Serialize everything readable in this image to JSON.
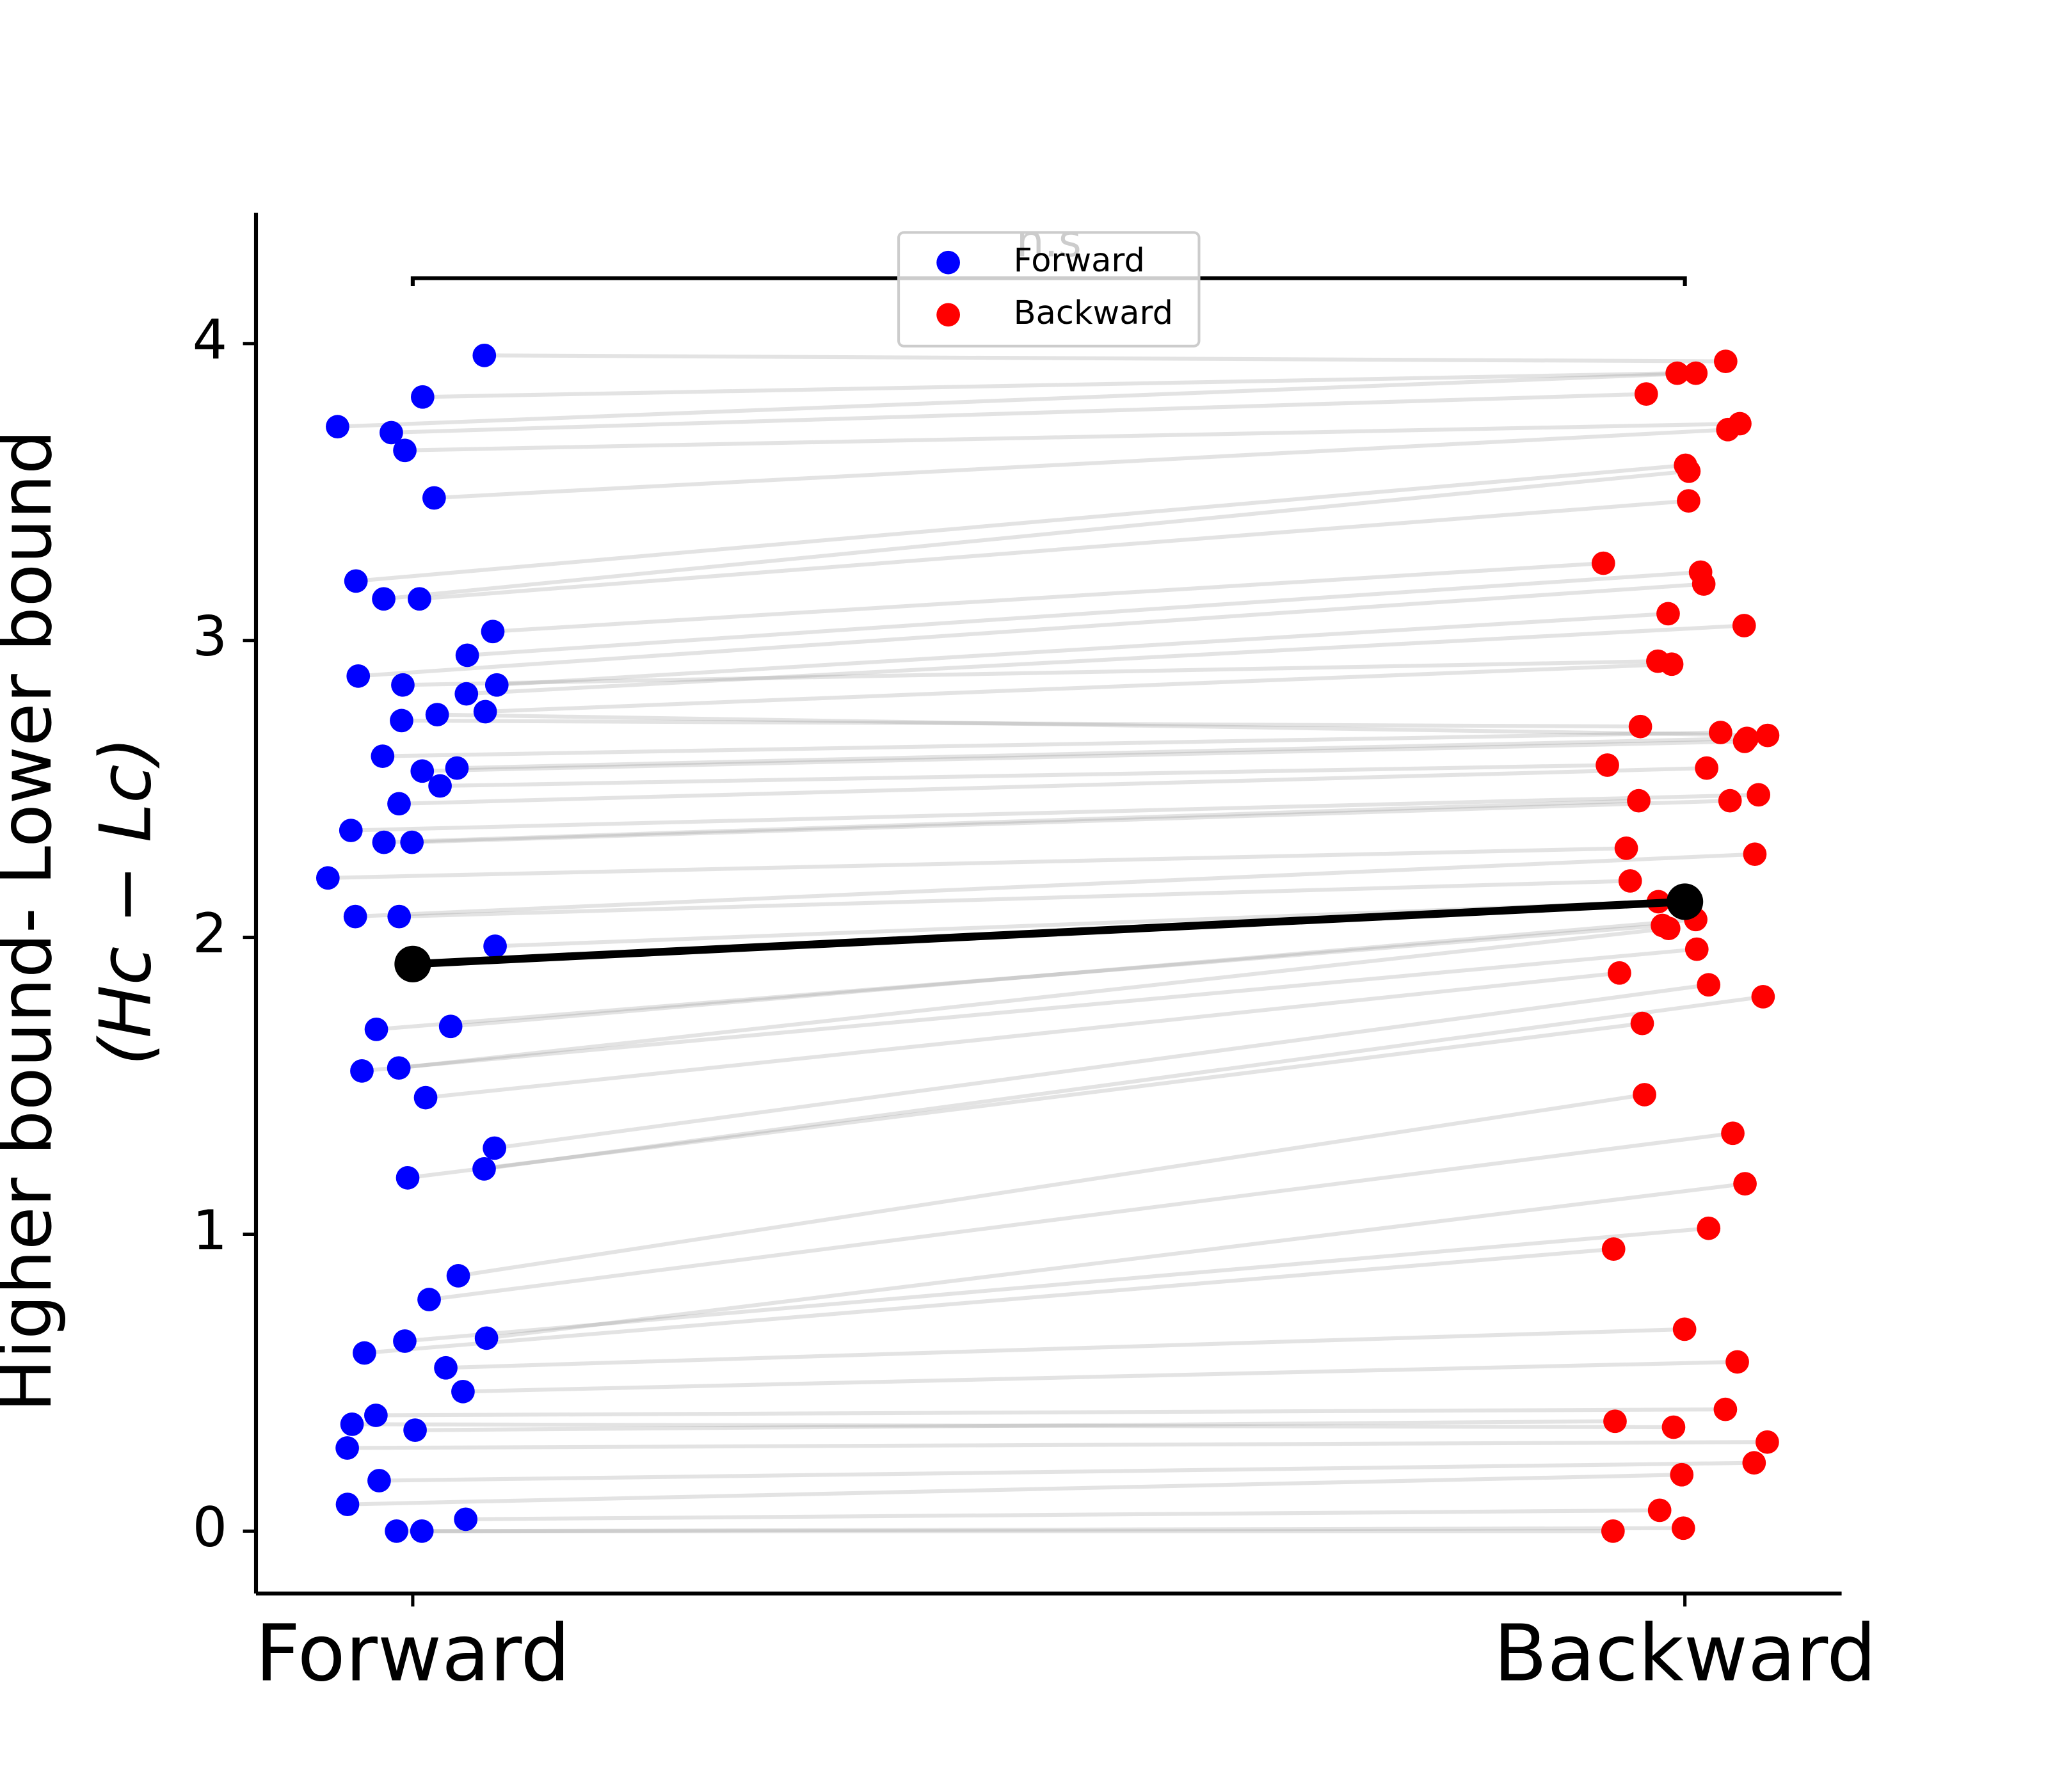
{
  "chart_data": {
    "type": "paired-strip",
    "categories": [
      "Forward",
      "Backward"
    ],
    "ylabel": [
      "Higher bound- Lower bound",
      "(Hc − Lc)"
    ],
    "annotation": {
      "text": "n.s",
      "y": 4.22
    },
    "legend": "upper center",
    "series": [
      {
        "name": "Forward",
        "color": "#0000ff",
        "values": [
          3.96,
          3.72,
          3.82,
          3.7,
          3.64,
          3.48,
          3.2,
          3.14,
          3.14,
          3.03,
          2.95,
          2.88,
          2.85,
          2.82,
          2.85,
          2.76,
          2.73,
          2.75,
          2.61,
          2.57,
          2.56,
          2.51,
          2.45,
          2.36,
          2.32,
          2.32,
          2.2,
          2.07,
          2.07,
          1.97,
          1.7,
          1.69,
          1.56,
          1.55,
          1.46,
          1.29,
          1.22,
          1.19,
          0.86,
          0.78,
          0.65,
          0.64,
          0.6,
          0.55,
          0.47,
          0.39,
          0.34,
          0.36,
          0.28,
          0.17,
          0.09,
          0.04,
          0.0,
          0.0
        ]
      },
      {
        "name": "Backward",
        "color": "#ff0000",
        "values": [
          3.94,
          3.9,
          3.9,
          3.83,
          3.73,
          3.71,
          3.59,
          3.57,
          3.47,
          3.26,
          3.23,
          3.19,
          3.09,
          3.05,
          2.93,
          2.92,
          2.71,
          2.68,
          2.69,
          2.67,
          2.66,
          2.58,
          2.57,
          2.48,
          2.46,
          2.46,
          2.3,
          2.28,
          2.19,
          2.12,
          2.06,
          2.04,
          2.03,
          1.96,
          1.88,
          1.84,
          1.8,
          1.71,
          1.47,
          1.34,
          1.17,
          1.02,
          0.95,
          0.68,
          0.57,
          0.41,
          0.37,
          0.35,
          0.3,
          0.23,
          0.19,
          0.07,
          0.01,
          0.0
        ]
      }
    ],
    "summary": {
      "color": "#000000",
      "values": [
        1.91,
        2.12
      ]
    },
    "ylim": [
      -0.21,
      4.44
    ],
    "yticks": [
      0,
      1,
      2,
      3,
      4
    ]
  }
}
